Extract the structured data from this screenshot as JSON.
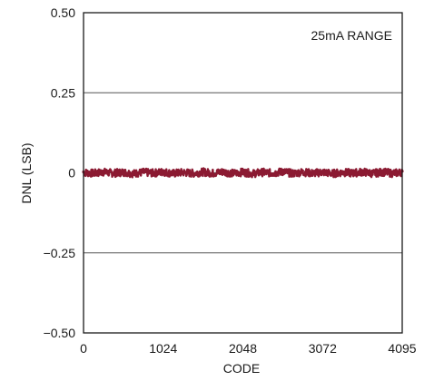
{
  "chart_data": {
    "type": "line",
    "xlabel": "CODE",
    "ylabel": "DNL (LSB)",
    "annotation": "25mA RANGE",
    "xlim": [
      0,
      4095
    ],
    "ylim": [
      -0.5,
      0.5
    ],
    "x_ticks": [
      {
        "value": 0,
        "label": "0"
      },
      {
        "value": 1024,
        "label": "1024"
      },
      {
        "value": 2048,
        "label": "2048"
      },
      {
        "value": 3072,
        "label": "3072"
      },
      {
        "value": 4095,
        "label": "4095"
      }
    ],
    "y_ticks": [
      {
        "value": 0.5,
        "label": "0.50"
      },
      {
        "value": 0.25,
        "label": "0.25"
      },
      {
        "value": 0,
        "label": "0"
      },
      {
        "value": -0.25,
        "label": "−0.25"
      },
      {
        "value": -0.5,
        "label": "−0.50"
      }
    ],
    "grid": "horizontal",
    "series": [
      {
        "color": "#8b1a32",
        "description_range": [
          -0.012,
          0.015
        ],
        "x": [
          0,
          128,
          256,
          384,
          512,
          640,
          768,
          896,
          1024,
          1152,
          1280,
          1408,
          1536,
          1664,
          1792,
          1920,
          2048,
          2176,
          2304,
          2432,
          2560,
          2688,
          2816,
          2944,
          3072,
          3200,
          3328,
          3456,
          3584,
          3712,
          3840,
          3968,
          4095
        ],
        "y": [
          0.003,
          -0.004,
          0.006,
          -0.003,
          0.005,
          -0.006,
          0.004,
          -0.002,
          0.007,
          -0.005,
          0.003,
          -0.004,
          0.006,
          -0.003,
          0.008,
          -0.004,
          0.005,
          -0.006,
          0.004,
          -0.003,
          0.009,
          -0.005,
          0.006,
          -0.004,
          0.005,
          -0.006,
          0.004,
          -0.003,
          0.007,
          -0.005,
          0.006,
          -0.004,
          0.005
        ]
      }
    ]
  }
}
